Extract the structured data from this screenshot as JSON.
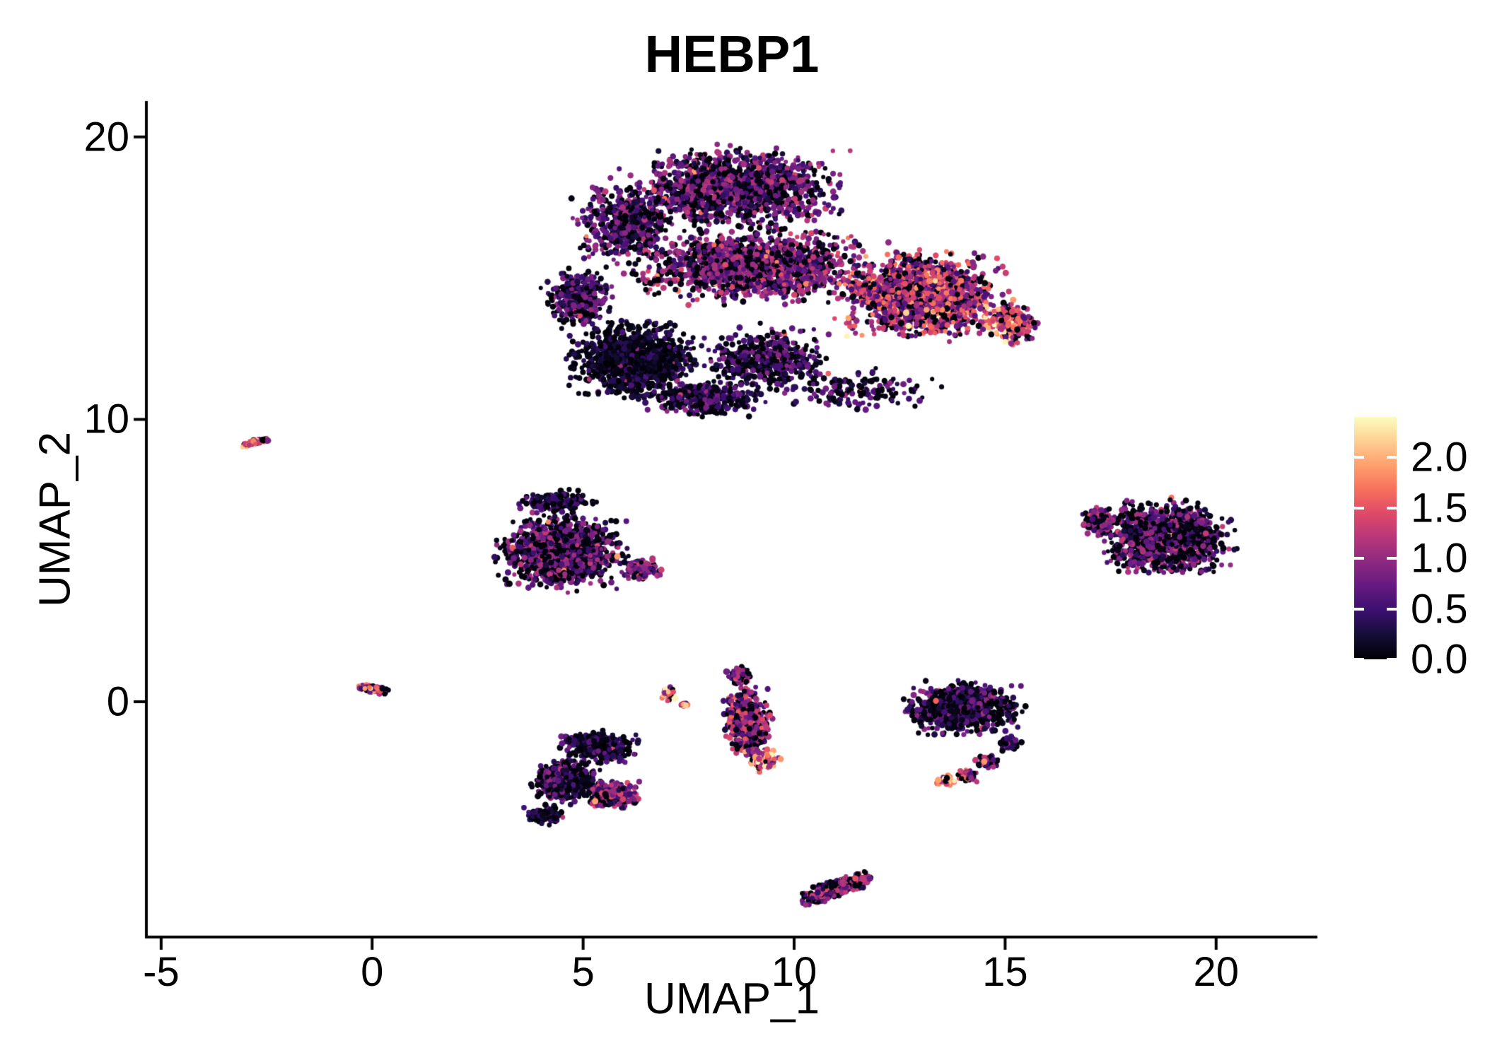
{
  "chart_data": {
    "type": "scatter",
    "title": "HEBP1",
    "xlabel": "UMAP_1",
    "ylabel": "UMAP_2",
    "xlim": [
      -5.35,
      22.4
    ],
    "ylim": [
      -8.33,
      21.27
    ],
    "grid": false,
    "x_ticks": {
      "labels": [
        "-5",
        "0",
        "5",
        "10",
        "15",
        "20"
      ],
      "values": [
        -5,
        0,
        5,
        10,
        15,
        20
      ]
    },
    "y_ticks": {
      "labels": [
        "20",
        "10",
        "0"
      ],
      "values": [
        20,
        10,
        0
      ]
    },
    "colorbar": {
      "position": "right",
      "labels": [
        "2.0",
        "1.5",
        "1.0",
        "0.5",
        "0.0"
      ],
      "values": [
        2.0,
        1.5,
        1.0,
        0.5,
        0.0
      ],
      "range": [
        0,
        2.4
      ]
    },
    "color_scale": {
      "palette": "magma",
      "range": [
        0,
        2.4
      ],
      "stops": [
        [
          0.0,
          "#000004"
        ],
        [
          0.1,
          "#140E36"
        ],
        [
          0.2,
          "#3B0F70"
        ],
        [
          0.3,
          "#641A80"
        ],
        [
          0.4,
          "#8C2981"
        ],
        [
          0.5,
          "#B73779"
        ],
        [
          0.6,
          "#DE4968"
        ],
        [
          0.7,
          "#F7705C"
        ],
        [
          0.8,
          "#FE9F6D"
        ],
        [
          0.9,
          "#FECF92"
        ],
        [
          1.0,
          "#FCFDBF"
        ]
      ]
    },
    "clusters": [
      {
        "cx": 8.6,
        "cy": 18.2,
        "rx": 3.1,
        "ry": 1.7,
        "n": 1500,
        "mean": 0.75,
        "p0": 0.32
      },
      {
        "cx": 6.0,
        "cy": 16.9,
        "rx": 1.4,
        "ry": 1.7,
        "n": 500,
        "mean": 0.7,
        "p0": 0.35
      },
      {
        "cx": 9.0,
        "cy": 15.4,
        "rx": 3.4,
        "ry": 1.5,
        "n": 1500,
        "mean": 0.85,
        "p0": 0.3
      },
      {
        "cx": 13.0,
        "cy": 14.4,
        "rx": 2.3,
        "ry": 1.8,
        "n": 1700,
        "mean": 1.15,
        "p0": 0.22
      },
      {
        "cx": 15.1,
        "cy": 13.4,
        "rx": 0.8,
        "ry": 0.9,
        "n": 260,
        "mean": 1.35,
        "p0": 0.18
      },
      {
        "cx": 6.2,
        "cy": 12.1,
        "rx": 1.8,
        "ry": 1.7,
        "n": 1150,
        "mean": 0.28,
        "p0": 0.55
      },
      {
        "cx": 4.9,
        "cy": 14.3,
        "rx": 0.95,
        "ry": 1.3,
        "n": 350,
        "mean": 0.6,
        "p0": 0.4
      },
      {
        "cx": 9.4,
        "cy": 12.1,
        "rx": 1.9,
        "ry": 1.4,
        "n": 480,
        "mean": 0.55,
        "p0": 0.45
      },
      {
        "cx": 7.9,
        "cy": 10.7,
        "rx": 1.6,
        "ry": 0.75,
        "n": 320,
        "mean": 0.55,
        "p0": 0.42
      },
      {
        "cx": 11.6,
        "cy": 11.0,
        "rx": 2.2,
        "ry": 0.9,
        "n": 140,
        "mean": 0.6,
        "p0": 0.45
      },
      {
        "cx": -2.75,
        "cy": 9.2,
        "rx": 0.5,
        "ry": 0.12,
        "n": 70,
        "mean": 1.25,
        "p0": 0.25,
        "angle": 20
      },
      {
        "cx": 4.5,
        "cy": 5.3,
        "rx": 1.85,
        "ry": 1.6,
        "n": 1250,
        "mean": 0.75,
        "p0": 0.42
      },
      {
        "cx": 6.4,
        "cy": 4.7,
        "rx": 0.55,
        "ry": 0.45,
        "n": 130,
        "mean": 0.9,
        "p0": 0.3
      },
      {
        "cx": 4.4,
        "cy": 7.1,
        "rx": 1.1,
        "ry": 0.5,
        "n": 140,
        "mean": 0.45,
        "p0": 0.5
      },
      {
        "cx": 18.8,
        "cy": 5.8,
        "rx": 1.9,
        "ry": 1.6,
        "n": 1150,
        "mean": 0.75,
        "p0": 0.45
      },
      {
        "cx": 17.2,
        "cy": 6.4,
        "rx": 0.55,
        "ry": 0.6,
        "n": 120,
        "mean": 0.9,
        "p0": 0.35
      },
      {
        "cx": 0.05,
        "cy": 0.45,
        "rx": 0.5,
        "ry": 0.16,
        "n": 90,
        "mean": 1.2,
        "p0": 0.3,
        "angle": -15
      },
      {
        "cx": 7.0,
        "cy": 0.3,
        "rx": 0.2,
        "ry": 0.35,
        "n": 40,
        "mean": 1.7,
        "p0": 0.12
      },
      {
        "cx": 7.4,
        "cy": -0.1,
        "rx": 0.13,
        "ry": 0.13,
        "n": 14,
        "mean": 1.4,
        "p0": 0.2
      },
      {
        "cx": 8.9,
        "cy": -0.7,
        "rx": 0.68,
        "ry": 1.55,
        "n": 460,
        "mean": 1.0,
        "p0": 0.3,
        "angle": 5
      },
      {
        "cx": 8.7,
        "cy": 0.9,
        "rx": 0.4,
        "ry": 0.4,
        "n": 90,
        "mean": 0.9,
        "p0": 0.35
      },
      {
        "cx": 9.25,
        "cy": -2.05,
        "rx": 0.5,
        "ry": 0.5,
        "n": 140,
        "mean": 1.8,
        "p0": 0.15
      },
      {
        "cx": 5.4,
        "cy": -1.6,
        "rx": 1.1,
        "ry": 0.65,
        "n": 360,
        "mean": 0.45,
        "p0": 0.5
      },
      {
        "cx": 4.6,
        "cy": -2.8,
        "rx": 0.95,
        "ry": 0.95,
        "n": 450,
        "mean": 0.55,
        "p0": 0.47
      },
      {
        "cx": 5.7,
        "cy": -3.3,
        "rx": 0.75,
        "ry": 0.6,
        "n": 260,
        "mean": 0.95,
        "p0": 0.3
      },
      {
        "cx": 4.05,
        "cy": -4.0,
        "rx": 0.55,
        "ry": 0.4,
        "n": 130,
        "mean": 0.35,
        "p0": 0.5
      },
      {
        "cx": 14.0,
        "cy": -0.25,
        "rx": 1.6,
        "ry": 1.1,
        "n": 880,
        "mean": 0.55,
        "p0": 0.5
      },
      {
        "cx": 15.1,
        "cy": -1.5,
        "rx": 0.35,
        "ry": 0.35,
        "n": 50,
        "mean": 0.6,
        "p0": 0.4
      },
      {
        "cx": 14.6,
        "cy": -2.1,
        "rx": 0.35,
        "ry": 0.3,
        "n": 55,
        "mean": 0.9,
        "p0": 0.3
      },
      {
        "cx": 14.1,
        "cy": -2.6,
        "rx": 0.35,
        "ry": 0.28,
        "n": 50,
        "mean": 1.1,
        "p0": 0.25
      },
      {
        "cx": 13.6,
        "cy": -2.8,
        "rx": 0.3,
        "ry": 0.25,
        "n": 45,
        "mean": 1.6,
        "p0": 0.15
      },
      {
        "cx": 11.0,
        "cy": -6.6,
        "rx": 1.1,
        "ry": 0.38,
        "n": 400,
        "mean": 0.9,
        "p0": 0.33,
        "angle": 28
      }
    ]
  }
}
